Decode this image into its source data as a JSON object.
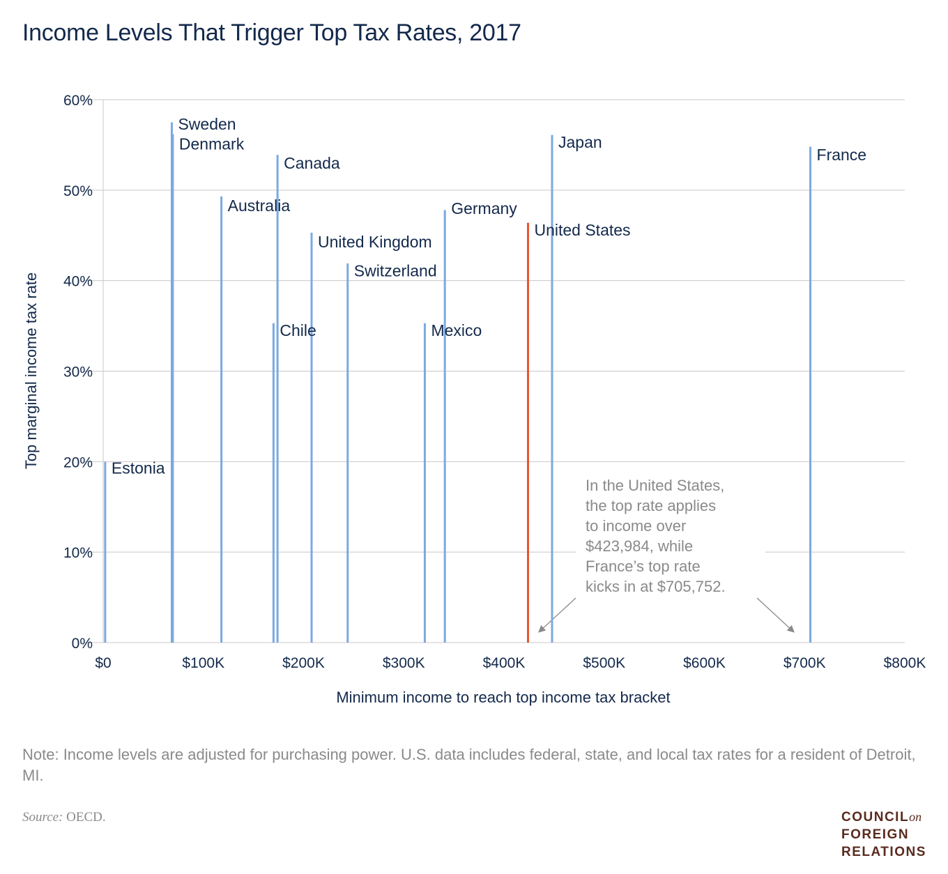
{
  "title": "Income Levels That Trigger Top Tax Rates, 2017",
  "note": "Note: Income levels are adjusted for purchasing power. U.S. data includes federal, state, and local tax rates for a resident of Detroit, MI.",
  "source_prefix": "Source:",
  "source_text": " OECD.",
  "logo": {
    "line1": "COUNCIL",
    "line1_suffix": "on",
    "line2": "FOREIGN",
    "line3": "RELATIONS"
  },
  "colors": {
    "bar": "#7aaae0",
    "highlight": "#e8552d",
    "text": "#13294b",
    "annotation": "#8a8a8a",
    "grid": "#c8c8c8"
  },
  "chart_data": {
    "type": "bar",
    "xlabel": "Minimum income to reach top income tax bracket",
    "ylabel": "Top marginal income tax rate",
    "xlim": [
      0,
      800000
    ],
    "ylim": [
      0,
      60
    ],
    "x_ticks": [
      {
        "value": 0,
        "label": "$0"
      },
      {
        "value": 100000,
        "label": "$100K"
      },
      {
        "value": 200000,
        "label": "$200K"
      },
      {
        "value": 300000,
        "label": "$300K"
      },
      {
        "value": 400000,
        "label": "$400K"
      },
      {
        "value": 500000,
        "label": "$500K"
      },
      {
        "value": 600000,
        "label": "$600K"
      },
      {
        "value": 700000,
        "label": "$700K"
      },
      {
        "value": 800000,
        "label": "$800K"
      }
    ],
    "y_ticks": [
      {
        "value": 0,
        "label": "0%"
      },
      {
        "value": 10,
        "label": "10%"
      },
      {
        "value": 20,
        "label": "20%"
      },
      {
        "value": 30,
        "label": "30%"
      },
      {
        "value": 40,
        "label": "40%"
      },
      {
        "value": 50,
        "label": "50%"
      },
      {
        "value": 60,
        "label": "60%"
      }
    ],
    "grid": true,
    "points": [
      {
        "country": "Estonia",
        "income": 2000,
        "rate": 20.0,
        "label_side": "right",
        "label_rate": 19.3
      },
      {
        "country": "Sweden",
        "income": 68500,
        "rate": 57.5,
        "label_side": "right",
        "label_rate": 57.3
      },
      {
        "country": "Denmark",
        "income": 69500,
        "rate": 56.2,
        "label_side": "right",
        "label_rate": 55.1
      },
      {
        "country": "Australia",
        "income": 118000,
        "rate": 49.3,
        "label_side": "right",
        "label_rate": 48.3
      },
      {
        "country": "Chile",
        "income": 170000,
        "rate": 35.3,
        "label_side": "right",
        "label_rate": 34.5
      },
      {
        "country": "Canada",
        "income": 174000,
        "rate": 53.9,
        "label_side": "right",
        "label_rate": 53.0
      },
      {
        "country": "United Kingdom",
        "income": 208000,
        "rate": 45.3,
        "label_side": "right",
        "label_rate": 44.3
      },
      {
        "country": "Switzerland",
        "income": 244000,
        "rate": 41.9,
        "label_side": "right",
        "label_rate": 41.1
      },
      {
        "country": "Mexico",
        "income": 321000,
        "rate": 35.3,
        "label_side": "right",
        "label_rate": 34.5
      },
      {
        "country": "Germany",
        "income": 341000,
        "rate": 47.8,
        "label_side": "right",
        "label_rate": 48.0
      },
      {
        "country": "United States",
        "income": 423984,
        "rate": 46.4,
        "label_side": "right",
        "label_rate": 45.6,
        "highlight": true
      },
      {
        "country": "Japan",
        "income": 448000,
        "rate": 56.1,
        "label_side": "right",
        "label_rate": 55.3
      },
      {
        "country": "France",
        "income": 705752,
        "rate": 54.8,
        "label_side": "right",
        "label_rate": 53.9
      }
    ],
    "annotation": {
      "lines": [
        "In the United States,",
        "the top rate applies",
        "to income over",
        "$423,984, while",
        "France’s top rate",
        "kicks in at $705,752."
      ]
    }
  }
}
